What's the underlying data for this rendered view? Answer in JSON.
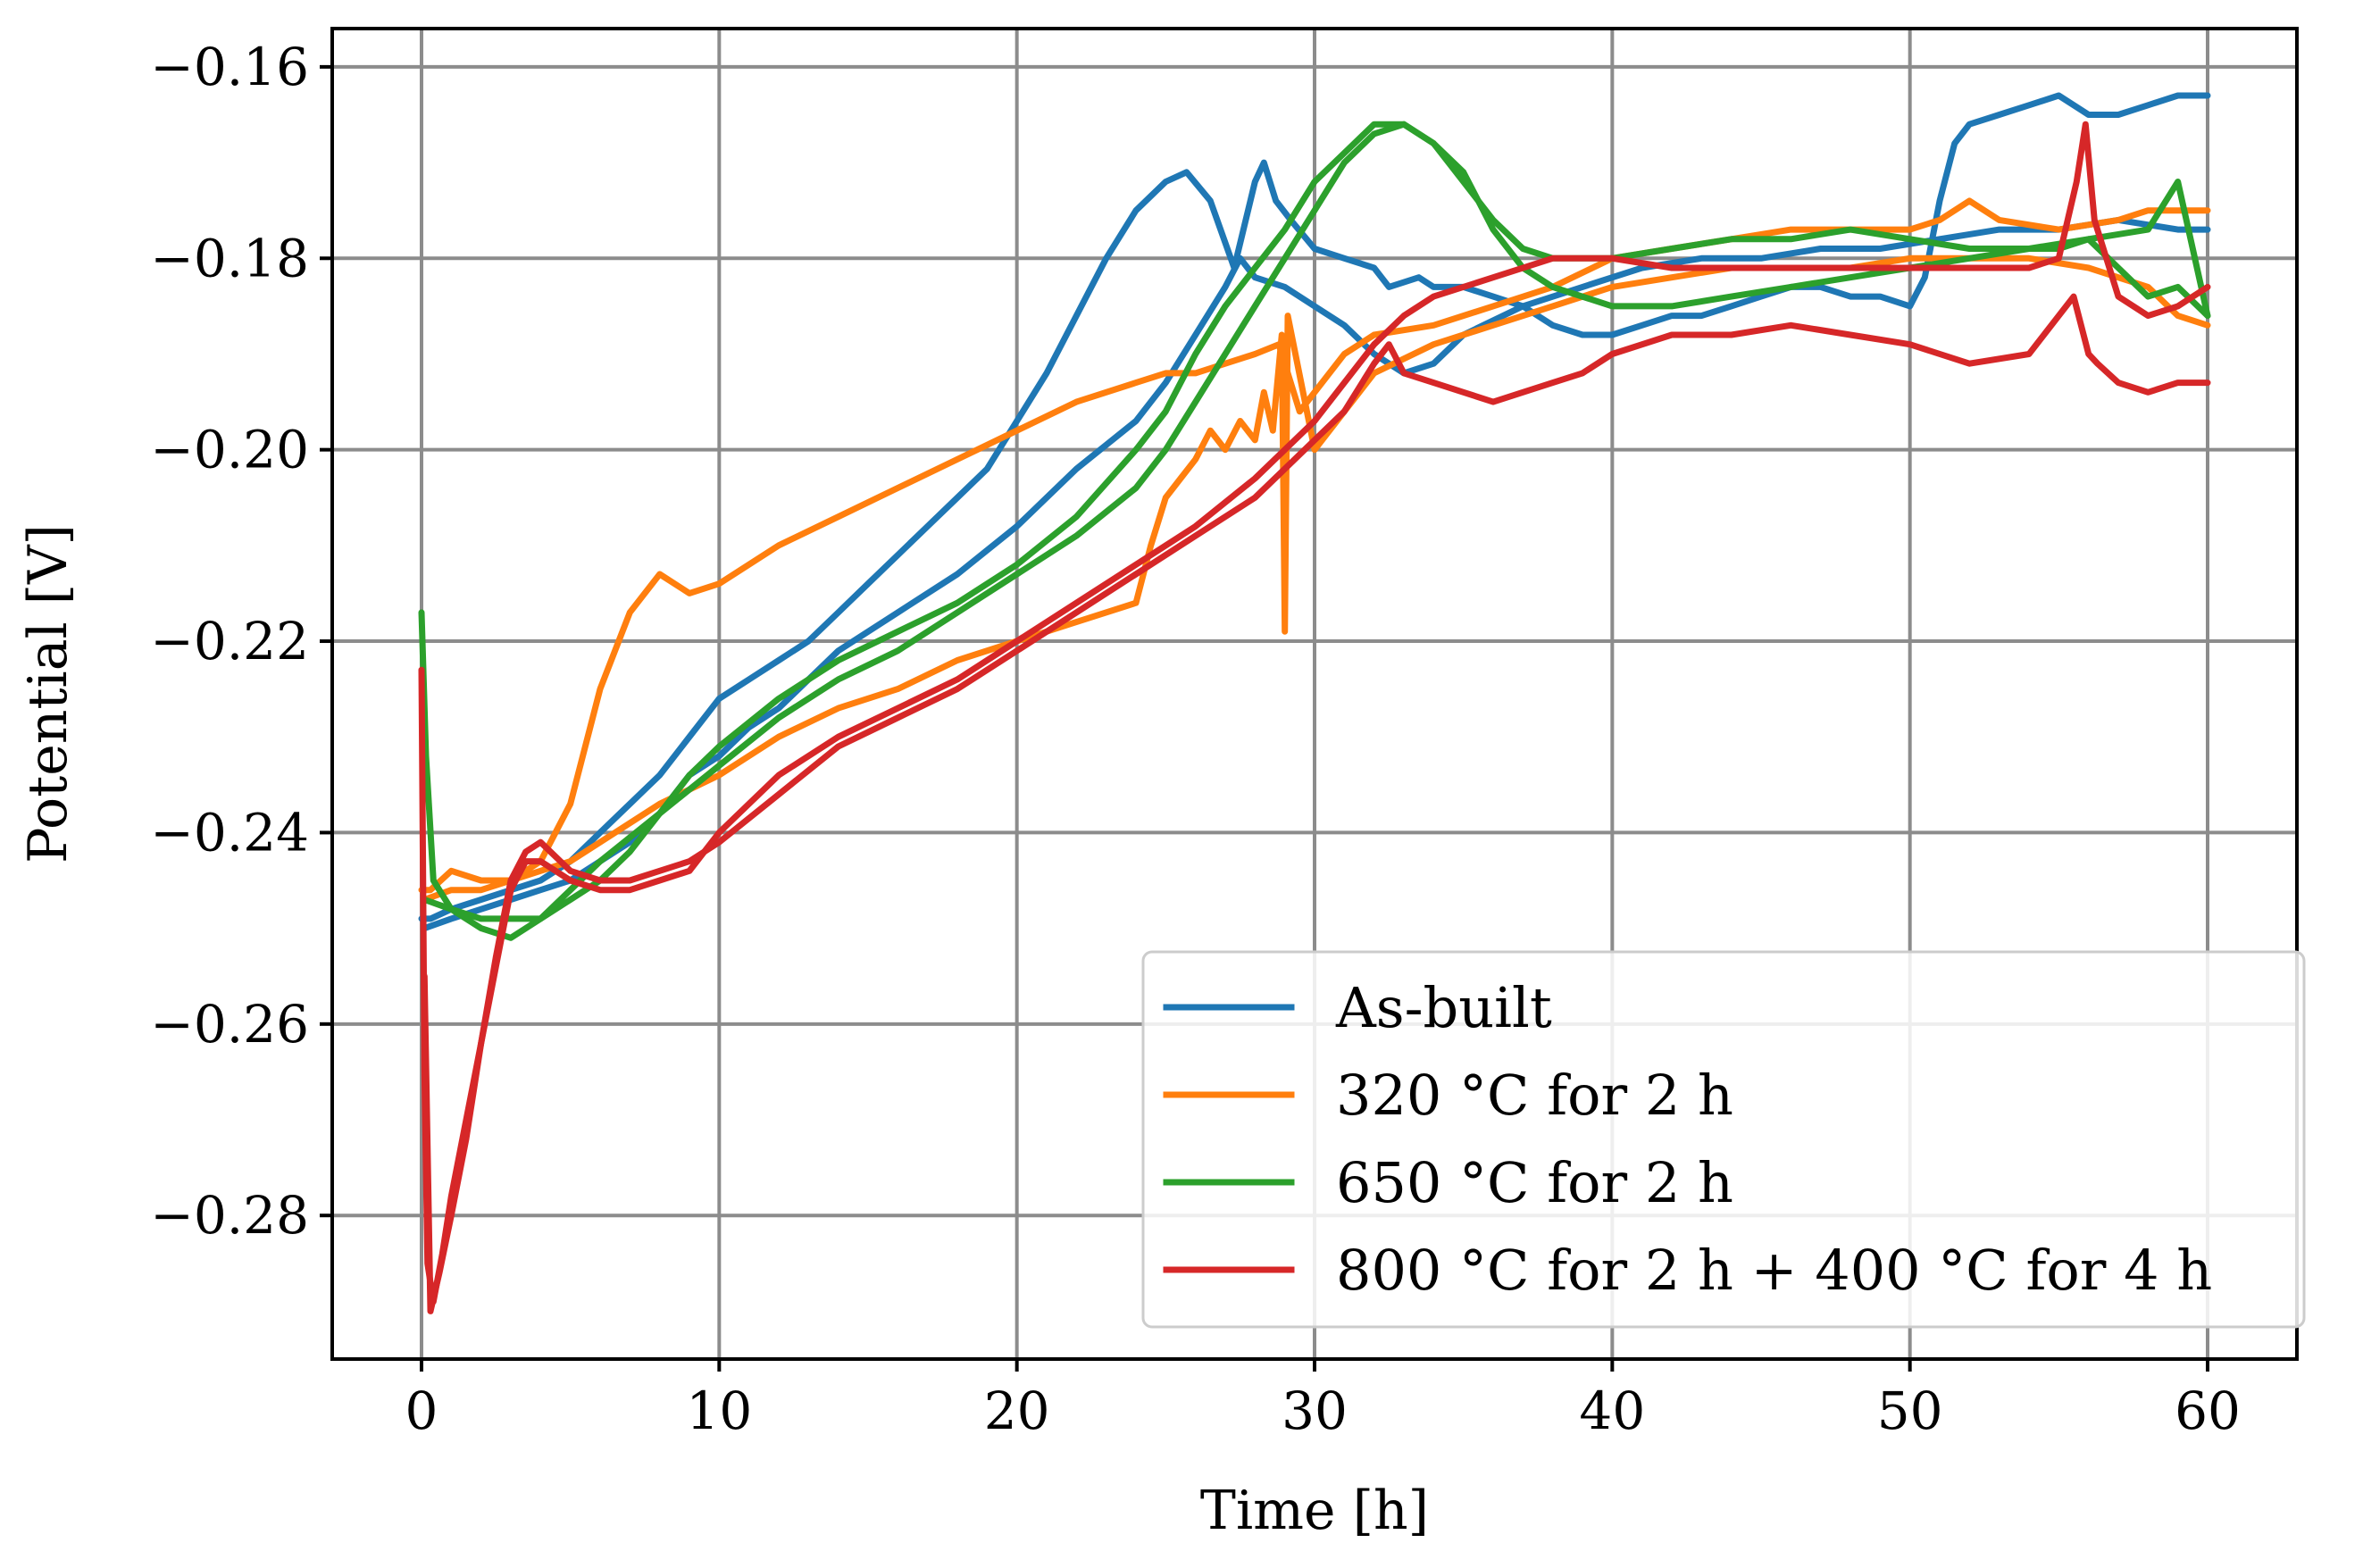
{
  "chart_data": {
    "type": "line",
    "title": "",
    "xlabel": "Time [h]",
    "ylabel": "Potential [V]",
    "xlim": [
      -3,
      63
    ],
    "ylim": [
      -0.295,
      -0.156
    ],
    "grid": true,
    "legend_position": "bottom-right",
    "x_ticks": [
      0,
      10,
      20,
      30,
      40,
      50,
      60
    ],
    "y_ticks": [
      -0.16,
      -0.18,
      -0.2,
      -0.22,
      -0.24,
      -0.26,
      -0.28
    ],
    "x_tick_labels": [
      "0",
      "10",
      "20",
      "30",
      "40",
      "50",
      "60"
    ],
    "y_tick_labels": [
      "−0.16",
      "−0.18",
      "−0.20",
      "−0.22",
      "−0.24",
      "−0.26",
      "−0.28"
    ],
    "series": [
      {
        "name": "As-built",
        "color": "#1f77b4",
        "x": [
          0,
          0.3,
          1,
          2,
          3,
          4,
          5,
          6,
          7,
          8,
          9,
          10,
          11,
          12,
          13,
          14,
          15,
          16,
          17,
          18,
          19,
          20,
          21,
          22,
          23,
          24,
          25,
          25.7,
          26.5,
          27.3,
          28,
          28.3,
          28.7,
          29.2,
          30,
          31,
          32,
          32.5,
          33.5,
          34,
          35,
          36,
          37,
          38,
          39,
          40,
          41,
          42,
          43,
          44,
          45,
          46,
          47,
          48,
          49,
          50,
          50.5,
          51,
          51.5,
          52,
          53,
          54,
          55,
          56,
          57,
          58,
          59,
          60
        ],
        "y": [
          -0.249,
          -0.249,
          -0.248,
          -0.247,
          -0.246,
          -0.245,
          -0.243,
          -0.24,
          -0.237,
          -0.234,
          -0.23,
          -0.226,
          -0.224,
          -0.222,
          -0.22,
          -0.217,
          -0.214,
          -0.211,
          -0.208,
          -0.205,
          -0.202,
          -0.197,
          -0.192,
          -0.186,
          -0.18,
          -0.175,
          -0.172,
          -0.171,
          -0.174,
          -0.181,
          -0.172,
          -0.17,
          -0.174,
          -0.176,
          -0.179,
          -0.18,
          -0.181,
          -0.183,
          -0.182,
          -0.183,
          -0.183,
          -0.184,
          -0.185,
          -0.187,
          -0.188,
          -0.188,
          -0.187,
          -0.186,
          -0.186,
          -0.185,
          -0.184,
          -0.183,
          -0.183,
          -0.184,
          -0.184,
          -0.185,
          -0.182,
          -0.174,
          -0.168,
          -0.166,
          -0.165,
          -0.164,
          -0.163,
          -0.165,
          -0.165,
          -0.164,
          -0.163,
          -0.163
        ]
      },
      {
        "name": "As-built",
        "color": "#1f77b4",
        "x": [
          0.1,
          1,
          2,
          3,
          4,
          5,
          6,
          7,
          8,
          9,
          10,
          11,
          12,
          14,
          16,
          18,
          20,
          22,
          24,
          25,
          26,
          27,
          27.5,
          28,
          29,
          30,
          31,
          32,
          33,
          34,
          35,
          37,
          39,
          41,
          43,
          45,
          47,
          49,
          51,
          53,
          55,
          57,
          59,
          60
        ],
        "y": [
          -0.25,
          -0.249,
          -0.248,
          -0.247,
          -0.246,
          -0.245,
          -0.243,
          -0.241,
          -0.238,
          -0.234,
          -0.232,
          -0.229,
          -0.227,
          -0.221,
          -0.217,
          -0.213,
          -0.208,
          -0.202,
          -0.197,
          -0.193,
          -0.188,
          -0.183,
          -0.18,
          -0.182,
          -0.183,
          -0.185,
          -0.187,
          -0.19,
          -0.192,
          -0.191,
          -0.188,
          -0.185,
          -0.183,
          -0.181,
          -0.18,
          -0.18,
          -0.179,
          -0.179,
          -0.178,
          -0.177,
          -0.177,
          -0.176,
          -0.177,
          -0.177
        ]
      },
      {
        "name": "320 °C for 2 h",
        "color": "#ff7f0e",
        "x": [
          0,
          0.3,
          1,
          2,
          3,
          4,
          5,
          6,
          7,
          8,
          9,
          10,
          12,
          14,
          16,
          18,
          20,
          22,
          24,
          25,
          26,
          27,
          28,
          28.8,
          29.5,
          30,
          31,
          32,
          34,
          36,
          38,
          40,
          42,
          44,
          46,
          48,
          50,
          51,
          52,
          53,
          55,
          57,
          58,
          59,
          60
        ],
        "y": [
          -0.246,
          -0.246,
          -0.244,
          -0.245,
          -0.245,
          -0.243,
          -0.237,
          -0.225,
          -0.217,
          -0.213,
          -0.215,
          -0.214,
          -0.21,
          -0.207,
          -0.204,
          -0.201,
          -0.198,
          -0.195,
          -0.193,
          -0.192,
          -0.192,
          -0.191,
          -0.19,
          -0.189,
          -0.196,
          -0.194,
          -0.19,
          -0.188,
          -0.187,
          -0.185,
          -0.183,
          -0.18,
          -0.179,
          -0.178,
          -0.177,
          -0.177,
          -0.177,
          -0.176,
          -0.174,
          -0.176,
          -0.177,
          -0.176,
          -0.175,
          -0.175,
          -0.175
        ]
      },
      {
        "name": "320 °C for 2 h",
        "color": "#ff7f0e",
        "x": [
          0.1,
          1,
          2,
          3,
          4,
          5,
          6,
          8,
          10,
          12,
          14,
          16,
          18,
          20,
          22,
          24,
          24.5,
          25,
          25.5,
          26,
          26.5,
          27,
          27.5,
          28,
          28.3,
          28.6,
          28.9,
          29,
          29.1,
          30,
          31,
          32,
          34,
          36,
          38,
          40,
          42,
          44,
          46,
          48,
          50,
          52,
          54,
          56,
          58,
          59,
          60
        ],
        "y": [
          -0.247,
          -0.246,
          -0.246,
          -0.245,
          -0.244,
          -0.243,
          -0.241,
          -0.237,
          -0.234,
          -0.23,
          -0.227,
          -0.225,
          -0.222,
          -0.22,
          -0.218,
          -0.216,
          -0.21,
          -0.205,
          -0.203,
          -0.201,
          -0.198,
          -0.2,
          -0.197,
          -0.199,
          -0.194,
          -0.198,
          -0.188,
          -0.219,
          -0.186,
          -0.2,
          -0.196,
          -0.192,
          -0.189,
          -0.187,
          -0.185,
          -0.183,
          -0.182,
          -0.181,
          -0.181,
          -0.181,
          -0.18,
          -0.18,
          -0.18,
          -0.181,
          -0.183,
          -0.186,
          -0.187
        ]
      },
      {
        "name": "650 °C for 2 h",
        "color": "#2ca02c",
        "x": [
          0,
          0.15,
          0.4,
          1,
          2,
          3,
          4,
          5,
          6,
          7,
          8,
          9,
          10,
          12,
          14,
          16,
          18,
          20,
          22,
          24,
          25,
          26,
          27,
          28,
          29,
          30,
          31,
          32,
          33,
          34,
          35,
          36,
          37,
          38,
          39,
          40,
          42,
          44,
          46,
          48,
          50,
          52,
          54,
          56,
          58,
          59,
          60
        ],
        "y": [
          -0.217,
          -0.232,
          -0.245,
          -0.248,
          -0.249,
          -0.249,
          -0.249,
          -0.247,
          -0.245,
          -0.242,
          -0.238,
          -0.234,
          -0.231,
          -0.226,
          -0.222,
          -0.219,
          -0.216,
          -0.212,
          -0.207,
          -0.2,
          -0.196,
          -0.19,
          -0.185,
          -0.181,
          -0.177,
          -0.172,
          -0.169,
          -0.166,
          -0.166,
          -0.168,
          -0.172,
          -0.176,
          -0.179,
          -0.18,
          -0.18,
          -0.18,
          -0.179,
          -0.178,
          -0.178,
          -0.177,
          -0.178,
          -0.179,
          -0.179,
          -0.178,
          -0.177,
          -0.172,
          -0.186
        ]
      },
      {
        "name": "650 °C for 2 h",
        "color": "#2ca02c",
        "x": [
          0.1,
          1,
          2,
          3,
          4,
          5,
          6,
          8,
          10,
          12,
          14,
          16,
          18,
          20,
          22,
          24,
          25,
          26,
          27,
          28,
          29,
          30,
          31,
          32,
          33,
          34,
          35,
          36,
          37,
          38,
          40,
          42,
          44,
          46,
          48,
          50,
          52,
          54,
          55,
          56,
          57,
          58,
          59,
          60
        ],
        "y": [
          -0.247,
          -0.248,
          -0.25,
          -0.251,
          -0.249,
          -0.246,
          -0.243,
          -0.238,
          -0.233,
          -0.228,
          -0.224,
          -0.221,
          -0.217,
          -0.213,
          -0.209,
          -0.204,
          -0.2,
          -0.195,
          -0.19,
          -0.185,
          -0.18,
          -0.175,
          -0.17,
          -0.167,
          -0.166,
          -0.168,
          -0.171,
          -0.177,
          -0.181,
          -0.183,
          -0.185,
          -0.185,
          -0.184,
          -0.183,
          -0.182,
          -0.181,
          -0.18,
          -0.179,
          -0.179,
          -0.178,
          -0.181,
          -0.184,
          -0.183,
          -0.186
        ]
      },
      {
        "name": "800 °C for 2 h + 400 °C for 4 h",
        "color": "#d62728",
        "x": [
          0,
          0.1,
          0.2,
          0.4,
          0.7,
          1,
          1.5,
          2,
          2.5,
          3,
          3.5,
          4,
          5,
          6,
          7,
          8,
          9,
          10,
          12,
          14,
          16,
          18,
          20,
          22,
          24,
          26,
          28,
          30,
          31,
          32,
          32.5,
          33,
          34,
          35,
          36,
          37,
          38,
          39,
          40,
          42,
          44,
          46,
          48,
          50,
          52,
          54,
          55,
          55.5,
          56,
          56.3,
          57,
          58,
          59,
          60
        ],
        "y": [
          -0.223,
          -0.265,
          -0.285,
          -0.289,
          -0.284,
          -0.278,
          -0.27,
          -0.262,
          -0.253,
          -0.245,
          -0.242,
          -0.241,
          -0.244,
          -0.245,
          -0.245,
          -0.244,
          -0.243,
          -0.241,
          -0.236,
          -0.231,
          -0.228,
          -0.225,
          -0.221,
          -0.217,
          -0.213,
          -0.209,
          -0.205,
          -0.199,
          -0.196,
          -0.191,
          -0.189,
          -0.192,
          -0.193,
          -0.194,
          -0.195,
          -0.194,
          -0.193,
          -0.192,
          -0.19,
          -0.188,
          -0.188,
          -0.187,
          -0.188,
          -0.189,
          -0.191,
          -0.19,
          -0.186,
          -0.184,
          -0.19,
          -0.191,
          -0.193,
          -0.194,
          -0.193,
          -0.193
        ]
      },
      {
        "name": "800 °C for 2 h + 400 °C for 4 h",
        "color": "#d62728",
        "x": [
          0.1,
          0.3,
          0.6,
          1,
          1.5,
          2,
          2.5,
          3,
          3.5,
          4,
          5,
          6,
          7,
          8,
          9,
          10,
          12,
          14,
          16,
          18,
          20,
          22,
          24,
          26,
          28,
          30,
          31,
          32,
          33,
          34,
          36,
          38,
          40,
          42,
          44,
          46,
          48,
          50,
          52,
          54,
          55,
          55.6,
          55.9,
          56.2,
          57,
          58,
          59,
          60
        ],
        "y": [
          -0.255,
          -0.29,
          -0.286,
          -0.28,
          -0.272,
          -0.262,
          -0.254,
          -0.246,
          -0.243,
          -0.243,
          -0.245,
          -0.246,
          -0.246,
          -0.245,
          -0.244,
          -0.24,
          -0.234,
          -0.23,
          -0.227,
          -0.224,
          -0.22,
          -0.216,
          -0.212,
          -0.208,
          -0.203,
          -0.197,
          -0.193,
          -0.189,
          -0.186,
          -0.184,
          -0.182,
          -0.18,
          -0.18,
          -0.181,
          -0.181,
          -0.181,
          -0.181,
          -0.181,
          -0.181,
          -0.181,
          -0.18,
          -0.172,
          -0.166,
          -0.176,
          -0.184,
          -0.186,
          -0.185,
          -0.183
        ]
      }
    ],
    "legend": [
      {
        "label": "As-built",
        "color": "#1f77b4"
      },
      {
        "label": "320 °C for 2 h",
        "color": "#ff7f0e"
      },
      {
        "label": "650 °C for 2 h",
        "color": "#2ca02c"
      },
      {
        "label": "800 °C for 2 h + 400 °C for 4 h",
        "color": "#d62728"
      }
    ]
  }
}
